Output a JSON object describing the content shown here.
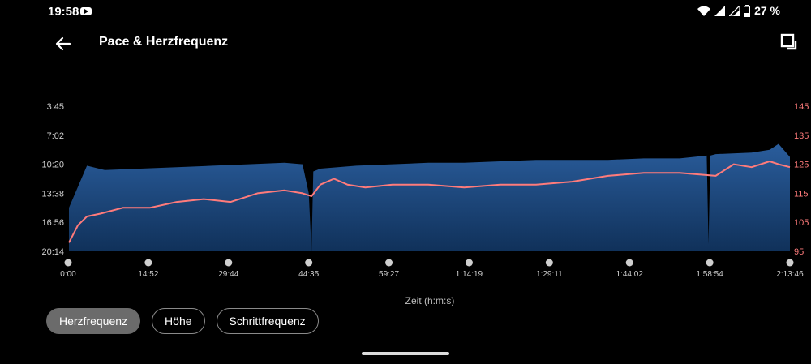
{
  "status_bar": {
    "time": "19:58",
    "battery_text": "27 %",
    "icons": [
      "youtube-icon",
      "wifi-icon",
      "signal-icon",
      "signal-icon",
      "battery-icon"
    ]
  },
  "header": {
    "title": "Pace & Herzfrequenz",
    "back_icon": "arrow-left-icon",
    "expand_icon": "expand-icon"
  },
  "chips": [
    {
      "label": "Herzfrequenz",
      "active": true
    },
    {
      "label": "Höhe",
      "active": false
    },
    {
      "label": "Schrittfrequenz",
      "active": false
    }
  ],
  "chart_data": {
    "type": "area",
    "xlabel": "Zeit (h:m:s)",
    "x_ticks": [
      "0:00",
      "14:52",
      "29:44",
      "44:35",
      "59:27",
      "1:14:19",
      "1:29:11",
      "1:44:02",
      "1:58:54",
      "2:13:46"
    ],
    "x_range_seconds": [
      0,
      8026
    ],
    "y_left": {
      "ticks": [
        "3:45",
        "7:02",
        "10:20",
        "13:38",
        "16:56",
        "20:14"
      ]
    },
    "y_right": {
      "ticks": [
        145,
        135,
        125,
        115,
        105,
        95
      ],
      "range": [
        95,
        145
      ]
    },
    "colors": {
      "pace": "#1f4e85",
      "heart_rate": "#ff7b7b"
    },
    "series": [
      {
        "type": "area",
        "axis": "left",
        "x_seconds": [
          0,
          200,
          400,
          800,
          1200,
          1600,
          2000,
          2400,
          2600,
          2670,
          2700,
          2720,
          2800,
          3200,
          3600,
          4000,
          4400,
          4800,
          5200,
          5600,
          6000,
          6400,
          6800,
          7100,
          7120,
          7140,
          7200,
          7600,
          7800,
          7900,
          8026
        ],
        "values_y_fraction": [
          0.3,
          0.59,
          0.56,
          0.57,
          0.58,
          0.59,
          0.6,
          0.61,
          0.6,
          0.4,
          0.0,
          0.55,
          0.57,
          0.59,
          0.6,
          0.61,
          0.61,
          0.62,
          0.63,
          0.63,
          0.63,
          0.64,
          0.64,
          0.66,
          0.05,
          0.66,
          0.67,
          0.68,
          0.7,
          0.74,
          0.65
        ]
      },
      {
        "type": "line",
        "axis": "right",
        "x_seconds": [
          0,
          100,
          200,
          350,
          600,
          900,
          1200,
          1500,
          1800,
          2100,
          2400,
          2600,
          2700,
          2800,
          2950,
          3100,
          3300,
          3600,
          4000,
          4400,
          4800,
          5200,
          5600,
          6000,
          6400,
          6800,
          7200,
          7400,
          7600,
          7800,
          7900,
          8026
        ],
        "values": [
          98,
          104,
          107,
          108,
          110,
          110,
          112,
          113,
          112,
          115,
          116,
          115,
          114,
          118,
          120,
          118,
          117,
          118,
          118,
          117,
          118,
          118,
          119,
          121,
          122,
          122,
          121,
          125,
          124,
          126,
          125,
          124
        ]
      }
    ]
  },
  "caption": "Zeit (h:m:s)"
}
